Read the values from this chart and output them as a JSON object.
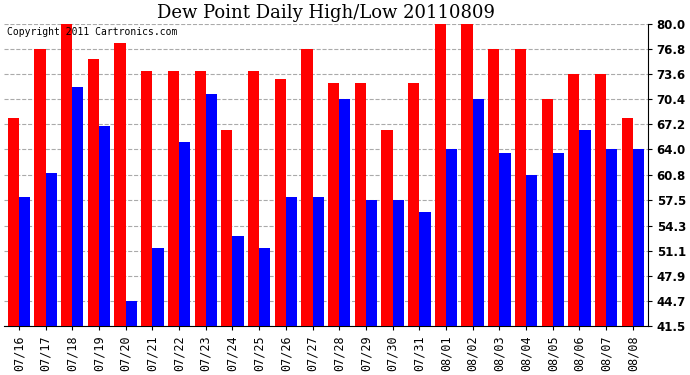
{
  "title": "Dew Point Daily High/Low 20110809",
  "copyright": "Copyright 2011 Cartronics.com",
  "dates": [
    "07/16",
    "07/17",
    "07/18",
    "07/19",
    "07/20",
    "07/21",
    "07/22",
    "07/23",
    "07/24",
    "07/25",
    "07/26",
    "07/27",
    "07/28",
    "07/29",
    "07/30",
    "07/31",
    "08/01",
    "08/02",
    "08/03",
    "08/04",
    "08/05",
    "08/06",
    "08/07",
    "08/08"
  ],
  "highs": [
    68.0,
    76.8,
    80.0,
    75.5,
    77.5,
    74.0,
    74.0,
    74.0,
    66.5,
    74.0,
    73.0,
    76.8,
    72.5,
    72.5,
    66.5,
    72.5,
    80.0,
    80.0,
    76.8,
    76.8,
    70.4,
    73.6,
    73.6,
    68.0
  ],
  "lows": [
    58.0,
    61.0,
    72.0,
    67.0,
    44.7,
    51.5,
    65.0,
    71.0,
    53.0,
    51.5,
    58.0,
    58.0,
    70.4,
    57.5,
    57.5,
    56.0,
    64.0,
    70.4,
    63.5,
    60.8,
    63.5,
    66.5,
    64.0,
    64.0
  ],
  "high_color": "#ff0000",
  "low_color": "#0000ff",
  "bg_color": "#ffffff",
  "ylim_min": 41.5,
  "ylim_max": 80.0,
  "yticks": [
    41.5,
    44.7,
    47.9,
    51.1,
    54.3,
    57.5,
    60.8,
    64.0,
    67.2,
    70.4,
    73.6,
    76.8,
    80.0
  ],
  "bar_width": 0.42,
  "grid_color": "#aaaaaa",
  "title_fontsize": 13,
  "copyright_fontsize": 7,
  "tick_fontsize": 8.5
}
